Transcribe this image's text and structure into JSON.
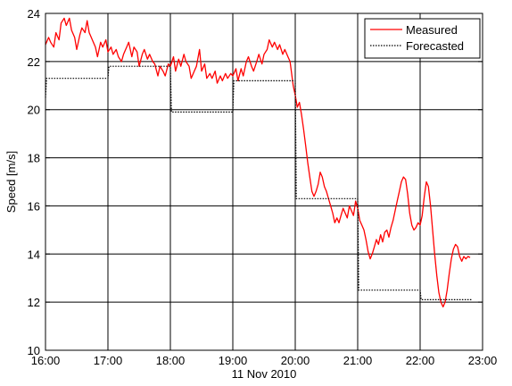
{
  "chart_data": {
    "type": "line",
    "xlabel": "11 Nov 2010",
    "ylabel": "Speed [m/s]",
    "xlim": [
      "16:00",
      "23:00"
    ],
    "ylim": [
      10,
      24
    ],
    "grid": true,
    "legend_position": "top-right",
    "x_ticks": [
      "16:00",
      "17:00",
      "18:00",
      "19:00",
      "20:00",
      "21:00",
      "22:00",
      "23:00"
    ],
    "y_ticks": [
      "10",
      "12",
      "14",
      "16",
      "18",
      "20",
      "22",
      "24"
    ],
    "series": [
      {
        "name": "Measured",
        "color": "#ff0000",
        "style": "solid",
        "points": [
          [
            "16:00",
            22.7
          ],
          [
            "16:03",
            23.0
          ],
          [
            "16:05",
            22.8
          ],
          [
            "16:08",
            22.6
          ],
          [
            "16:10",
            23.2
          ],
          [
            "16:13",
            22.9
          ],
          [
            "16:15",
            23.6
          ],
          [
            "16:18",
            23.8
          ],
          [
            "16:20",
            23.5
          ],
          [
            "16:23",
            23.8
          ],
          [
            "16:25",
            23.3
          ],
          [
            "16:28",
            23.0
          ],
          [
            "16:30",
            22.5
          ],
          [
            "16:33",
            23.1
          ],
          [
            "16:35",
            23.4
          ],
          [
            "16:38",
            23.2
          ],
          [
            "16:40",
            23.7
          ],
          [
            "16:42",
            23.2
          ],
          [
            "16:45",
            22.9
          ],
          [
            "16:48",
            22.6
          ],
          [
            "16:50",
            22.2
          ],
          [
            "16:53",
            22.8
          ],
          [
            "16:55",
            22.6
          ],
          [
            "16:58",
            22.9
          ],
          [
            "17:00",
            22.4
          ],
          [
            "17:03",
            22.6
          ],
          [
            "17:05",
            22.3
          ],
          [
            "17:08",
            22.5
          ],
          [
            "17:10",
            22.2
          ],
          [
            "17:13",
            22.0
          ],
          [
            "17:15",
            22.3
          ],
          [
            "17:18",
            22.6
          ],
          [
            "17:20",
            22.8
          ],
          [
            "17:23",
            22.2
          ],
          [
            "17:25",
            22.6
          ],
          [
            "17:28",
            22.4
          ],
          [
            "17:30",
            21.8
          ],
          [
            "17:33",
            22.3
          ],
          [
            "17:35",
            22.5
          ],
          [
            "17:38",
            22.1
          ],
          [
            "17:40",
            22.3
          ],
          [
            "17:43",
            22.0
          ],
          [
            "17:45",
            21.9
          ],
          [
            "17:48",
            21.4
          ],
          [
            "17:50",
            21.8
          ],
          [
            "17:53",
            21.6
          ],
          [
            "17:55",
            21.4
          ],
          [
            "17:58",
            21.9
          ],
          [
            "18:00",
            21.8
          ],
          [
            "18:03",
            22.2
          ],
          [
            "18:05",
            21.6
          ],
          [
            "18:08",
            22.1
          ],
          [
            "18:10",
            21.8
          ],
          [
            "18:13",
            22.3
          ],
          [
            "18:15",
            22.0
          ],
          [
            "18:18",
            21.8
          ],
          [
            "18:20",
            21.3
          ],
          [
            "18:23",
            21.6
          ],
          [
            "18:25",
            21.8
          ],
          [
            "18:28",
            22.5
          ],
          [
            "18:30",
            21.6
          ],
          [
            "18:33",
            21.9
          ],
          [
            "18:35",
            21.3
          ],
          [
            "18:38",
            21.5
          ],
          [
            "18:40",
            21.3
          ],
          [
            "18:43",
            21.6
          ],
          [
            "18:45",
            21.1
          ],
          [
            "18:48",
            21.4
          ],
          [
            "18:50",
            21.2
          ],
          [
            "18:53",
            21.5
          ],
          [
            "18:55",
            21.3
          ],
          [
            "18:58",
            21.5
          ],
          [
            "19:00",
            21.4
          ],
          [
            "19:03",
            21.7
          ],
          [
            "19:05",
            21.2
          ],
          [
            "19:08",
            21.7
          ],
          [
            "19:10",
            21.4
          ],
          [
            "19:13",
            22.0
          ],
          [
            "19:15",
            22.2
          ],
          [
            "19:18",
            21.8
          ],
          [
            "19:20",
            21.6
          ],
          [
            "19:23",
            22.0
          ],
          [
            "19:25",
            22.3
          ],
          [
            "19:28",
            21.9
          ],
          [
            "19:30",
            22.3
          ],
          [
            "19:33",
            22.5
          ],
          [
            "19:35",
            22.9
          ],
          [
            "19:38",
            22.6
          ],
          [
            "19:40",
            22.8
          ],
          [
            "19:43",
            22.5
          ],
          [
            "19:45",
            22.7
          ],
          [
            "19:48",
            22.3
          ],
          [
            "19:50",
            22.5
          ],
          [
            "19:53",
            22.2
          ],
          [
            "19:55",
            22.0
          ],
          [
            "19:58",
            21.0
          ],
          [
            "20:00",
            20.6
          ],
          [
            "20:02",
            20.1
          ],
          [
            "20:04",
            20.3
          ],
          [
            "20:06",
            19.8
          ],
          [
            "20:08",
            19.2
          ],
          [
            "20:10",
            18.5
          ],
          [
            "20:12",
            17.8
          ],
          [
            "20:14",
            17.2
          ],
          [
            "20:16",
            16.6
          ],
          [
            "20:18",
            16.4
          ],
          [
            "20:20",
            16.6
          ],
          [
            "20:22",
            16.9
          ],
          [
            "20:24",
            17.4
          ],
          [
            "20:26",
            17.2
          ],
          [
            "20:28",
            16.8
          ],
          [
            "20:30",
            16.6
          ],
          [
            "20:32",
            16.3
          ],
          [
            "20:34",
            16.0
          ],
          [
            "20:36",
            15.7
          ],
          [
            "20:38",
            15.3
          ],
          [
            "20:40",
            15.5
          ],
          [
            "20:42",
            15.3
          ],
          [
            "20:44",
            15.6
          ],
          [
            "20:46",
            15.9
          ],
          [
            "20:48",
            15.7
          ],
          [
            "20:50",
            15.5
          ],
          [
            "20:52",
            16.0
          ],
          [
            "20:54",
            15.8
          ],
          [
            "20:56",
            15.6
          ],
          [
            "20:58",
            16.2
          ],
          [
            "21:00",
            15.9
          ],
          [
            "21:02",
            15.4
          ],
          [
            "21:04",
            15.2
          ],
          [
            "21:06",
            15.0
          ],
          [
            "21:08",
            14.6
          ],
          [
            "21:10",
            14.1
          ],
          [
            "21:12",
            13.8
          ],
          [
            "21:14",
            14.0
          ],
          [
            "21:16",
            14.3
          ],
          [
            "21:18",
            14.6
          ],
          [
            "21:20",
            14.4
          ],
          [
            "21:22",
            14.8
          ],
          [
            "21:24",
            14.5
          ],
          [
            "21:26",
            14.9
          ],
          [
            "21:28",
            15.0
          ],
          [
            "21:30",
            14.7
          ],
          [
            "21:32",
            15.1
          ],
          [
            "21:34",
            15.4
          ],
          [
            "21:36",
            15.8
          ],
          [
            "21:38",
            16.2
          ],
          [
            "21:40",
            16.6
          ],
          [
            "21:42",
            17.0
          ],
          [
            "21:44",
            17.2
          ],
          [
            "21:46",
            17.1
          ],
          [
            "21:48",
            16.5
          ],
          [
            "21:50",
            15.7
          ],
          [
            "21:52",
            15.2
          ],
          [
            "21:54",
            15.0
          ],
          [
            "21:56",
            15.1
          ],
          [
            "21:58",
            15.3
          ],
          [
            "22:00",
            15.2
          ],
          [
            "22:02",
            15.6
          ],
          [
            "22:04",
            16.4
          ],
          [
            "22:06",
            17.0
          ],
          [
            "22:08",
            16.8
          ],
          [
            "22:10",
            16.0
          ],
          [
            "22:12",
            15.0
          ],
          [
            "22:14",
            14.0
          ],
          [
            "22:16",
            13.1
          ],
          [
            "22:18",
            12.4
          ],
          [
            "22:20",
            12.0
          ],
          [
            "22:22",
            11.8
          ],
          [
            "22:24",
            12.0
          ],
          [
            "22:26",
            12.5
          ],
          [
            "22:28",
            13.2
          ],
          [
            "22:30",
            13.8
          ],
          [
            "22:32",
            14.2
          ],
          [
            "22:34",
            14.4
          ],
          [
            "22:36",
            14.3
          ],
          [
            "22:38",
            13.9
          ],
          [
            "22:40",
            13.7
          ],
          [
            "22:42",
            13.9
          ],
          [
            "22:44",
            13.8
          ],
          [
            "22:46",
            13.9
          ],
          [
            "22:48",
            13.85
          ]
        ]
      },
      {
        "name": "Forecasted",
        "color": "#000000",
        "style": "dotted",
        "points": [
          [
            "16:00",
            20.5
          ],
          [
            "16:01",
            21.3
          ],
          [
            "17:00",
            21.3
          ],
          [
            "17:01",
            21.8
          ],
          [
            "18:00",
            21.8
          ],
          [
            "18:01",
            19.9
          ],
          [
            "19:00",
            19.9
          ],
          [
            "19:01",
            21.2
          ],
          [
            "20:00",
            21.2
          ],
          [
            "20:01",
            16.3
          ],
          [
            "21:00",
            16.3
          ],
          [
            "21:01",
            12.5
          ],
          [
            "22:00",
            12.5
          ],
          [
            "22:01",
            12.1
          ],
          [
            "22:50",
            12.1
          ]
        ]
      }
    ]
  }
}
